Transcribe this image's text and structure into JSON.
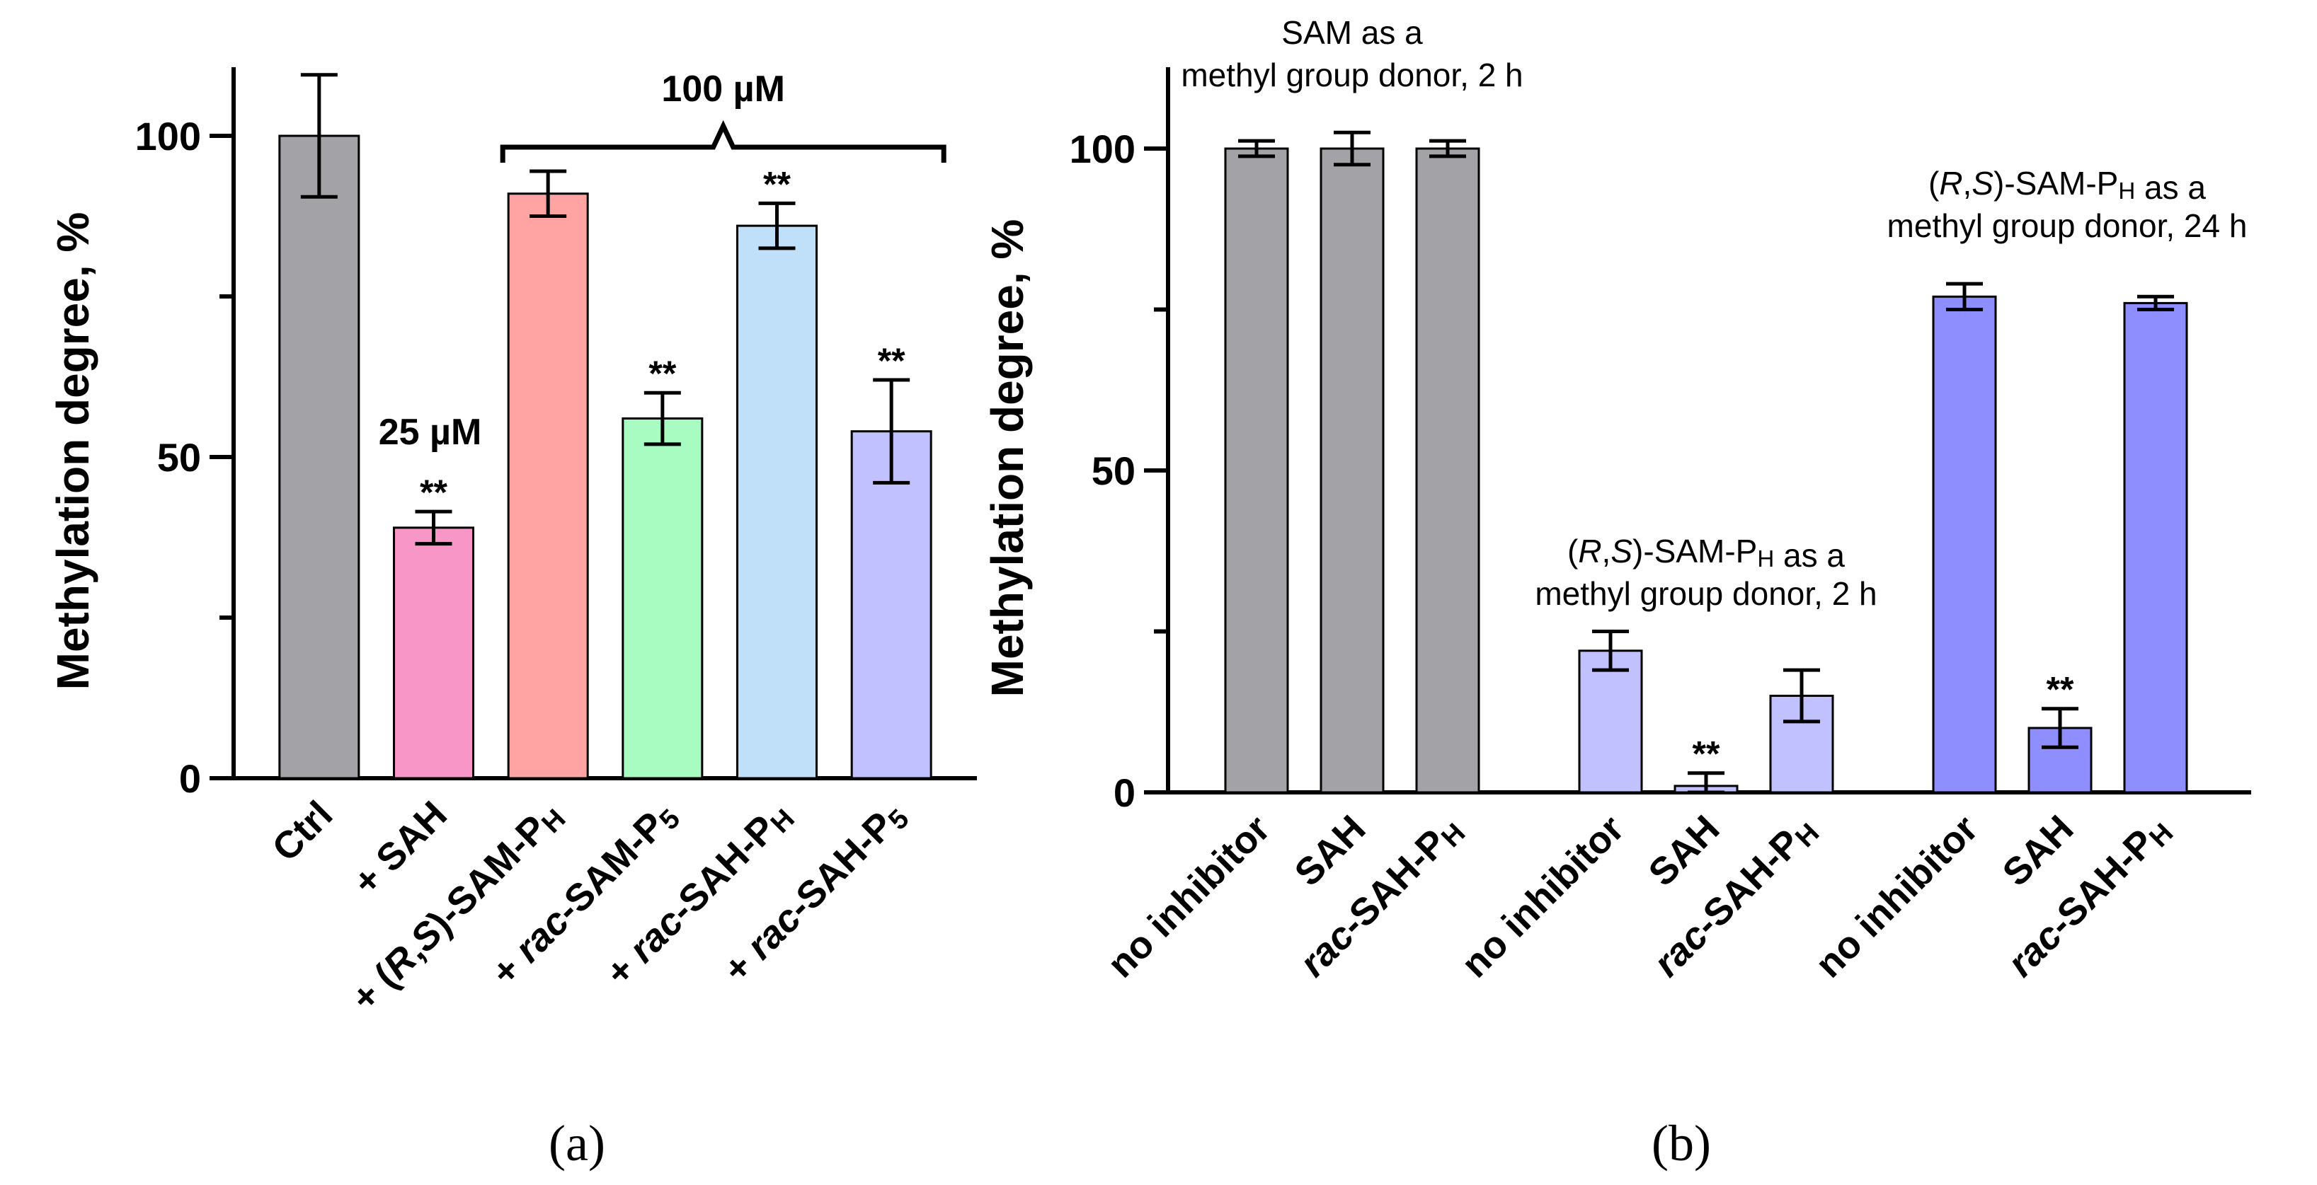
{
  "chart_data": [
    {
      "type": "bar",
      "panel_label": "(a)",
      "ylabel": "Methylation degree, %",
      "ylim": [
        0,
        100
      ],
      "yticks": [
        0,
        50,
        100
      ],
      "categories": [
        [
          {
            "t": "Ctrl"
          }
        ],
        [
          {
            "t": "+ SAH"
          }
        ],
        [
          {
            "t": "+ ("
          },
          {
            "t": "R",
            "i": true
          },
          {
            "t": ","
          },
          {
            "t": "S",
            "i": true
          },
          {
            "t": ")-SAM-P"
          },
          {
            "t": "H",
            "sub": true
          }
        ],
        [
          {
            "t": "+ "
          },
          {
            "t": "rac",
            "i": true
          },
          {
            "t": "-SAM-P"
          },
          {
            "t": "5",
            "sub": true
          }
        ],
        [
          {
            "t": "+ "
          },
          {
            "t": "rac",
            "i": true
          },
          {
            "t": "-SAH-P"
          },
          {
            "t": "H",
            "sub": true
          }
        ],
        [
          {
            "t": "+ "
          },
          {
            "t": "rac",
            "i": true
          },
          {
            "t": "-SAH-P"
          },
          {
            "t": "5",
            "sub": true
          }
        ]
      ],
      "values": [
        100,
        39,
        91,
        56,
        86,
        54
      ],
      "errors": [
        9.5,
        2.5,
        3.5,
        4,
        3.5,
        8
      ],
      "significance": [
        "",
        "**",
        "",
        "**",
        "**",
        "**"
      ],
      "colors": [
        "#a3a3a7",
        "#f896c7",
        "#ffa3a3",
        "#a8fbc1",
        "#c0dff9",
        "#c1c1ff"
      ],
      "annotations": [
        {
          "text": "25 µM",
          "category_index": 1
        },
        {
          "text": "100 µM",
          "category_range": [
            2,
            5
          ]
        }
      ]
    },
    {
      "type": "bar",
      "panel_label": "(b)",
      "ylabel": "Methylation degree, %",
      "ylim": [
        0,
        100
      ],
      "yticks": [
        0,
        50,
        100
      ],
      "groups": [
        {
          "annotation": [
            [
              {
                "t": "SAM as a"
              }
            ],
            [
              {
                "t": "methyl group donor, 2 h"
              }
            ]
          ],
          "categories": [
            [
              {
                "t": "no inhibitor"
              }
            ],
            [
              {
                "t": "SAH"
              }
            ],
            [
              {
                "t": "rac",
                "i": true
              },
              {
                "t": "-SAH-P"
              },
              {
                "t": "H",
                "sub": true
              }
            ]
          ],
          "values": [
            100,
            100,
            100
          ],
          "errors": [
            1.2,
            2.5,
            1.2
          ],
          "significance": [
            "",
            "",
            ""
          ],
          "color": "#a3a3a7"
        },
        {
          "annotation": [
            [
              {
                "t": "("
              },
              {
                "t": "R",
                "i": true
              },
              {
                "t": ","
              },
              {
                "t": "S",
                "i": true
              },
              {
                "t": ")-SAM-P"
              },
              {
                "t": "H",
                "sub": true
              },
              {
                "t": " as a"
              }
            ],
            [
              {
                "t": "methyl group donor, 2 h"
              }
            ]
          ],
          "categories": [
            [
              {
                "t": "no inhibitor"
              }
            ],
            [
              {
                "t": "SAH"
              }
            ],
            [
              {
                "t": "rac",
                "i": true
              },
              {
                "t": "-SAH-P"
              },
              {
                "t": "H",
                "sub": true
              }
            ]
          ],
          "values": [
            22,
            1,
            15
          ],
          "errors": [
            3,
            2,
            4
          ],
          "significance": [
            "",
            "**",
            ""
          ],
          "color": "#c1c1ff"
        },
        {
          "annotation": [
            [
              {
                "t": "("
              },
              {
                "t": "R",
                "i": true
              },
              {
                "t": ","
              },
              {
                "t": "S",
                "i": true
              },
              {
                "t": ")-SAM-P"
              },
              {
                "t": "H",
                "sub": true
              },
              {
                "t": " as a"
              }
            ],
            [
              {
                "t": "methyl group donor, 24 h"
              }
            ]
          ],
          "categories": [
            [
              {
                "t": "no inhibitor"
              }
            ],
            [
              {
                "t": "SAH"
              }
            ],
            [
              {
                "t": "rac",
                "i": true
              },
              {
                "t": "-SAH-P"
              },
              {
                "t": "H",
                "sub": true
              }
            ]
          ],
          "values": [
            77,
            10,
            76
          ],
          "errors": [
            2,
            3,
            1
          ],
          "significance": [
            "",
            "**",
            ""
          ],
          "color": "#8e8eff"
        }
      ]
    }
  ]
}
